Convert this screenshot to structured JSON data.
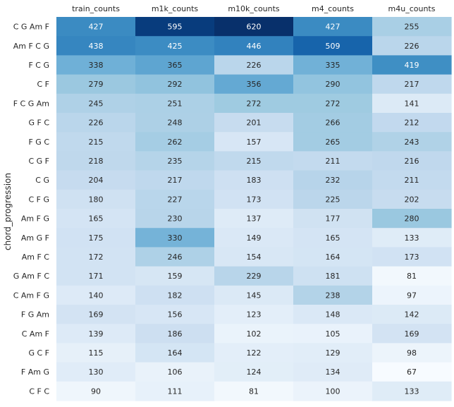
{
  "chart_data": {
    "type": "heatmap",
    "xlabel": "",
    "ylabel": "chord_progression",
    "x_position": "top",
    "colormap": "Blues",
    "colorbar": false,
    "columns": [
      "train_counts",
      "m1k_counts",
      "m10k_counts",
      "m4_counts",
      "m4u_counts"
    ],
    "rows": [
      "C G Am F",
      "Am F C G",
      "F C G",
      "C F",
      "F C G Am",
      "G F C",
      "F G C",
      "C G F",
      "C G",
      "C F G",
      "Am F G",
      "Am G F",
      "Am F C",
      "G Am F C",
      "C Am F G",
      "F G Am",
      "C Am F",
      "G C F",
      "F Am G",
      "C F C"
    ],
    "values": [
      [
        427,
        595,
        620,
        427,
        255
      ],
      [
        438,
        425,
        446,
        509,
        226
      ],
      [
        338,
        365,
        226,
        335,
        419
      ],
      [
        279,
        292,
        356,
        290,
        217
      ],
      [
        245,
        251,
        272,
        272,
        141
      ],
      [
        226,
        248,
        201,
        266,
        212
      ],
      [
        215,
        262,
        157,
        265,
        243
      ],
      [
        218,
        235,
        215,
        211,
        216
      ],
      [
        204,
        217,
        183,
        232,
        211
      ],
      [
        180,
        227,
        173,
        225,
        202
      ],
      [
        165,
        230,
        137,
        177,
        280
      ],
      [
        175,
        330,
        149,
        165,
        133
      ],
      [
        172,
        246,
        154,
        164,
        173
      ],
      [
        171,
        159,
        229,
        181,
        81
      ],
      [
        140,
        182,
        145,
        238,
        97
      ],
      [
        169,
        156,
        123,
        148,
        142
      ],
      [
        139,
        186,
        102,
        105,
        169
      ],
      [
        115,
        164,
        122,
        129,
        98
      ],
      [
        130,
        106,
        124,
        134,
        67
      ],
      [
        90,
        111,
        81,
        100,
        133
      ]
    ]
  }
}
